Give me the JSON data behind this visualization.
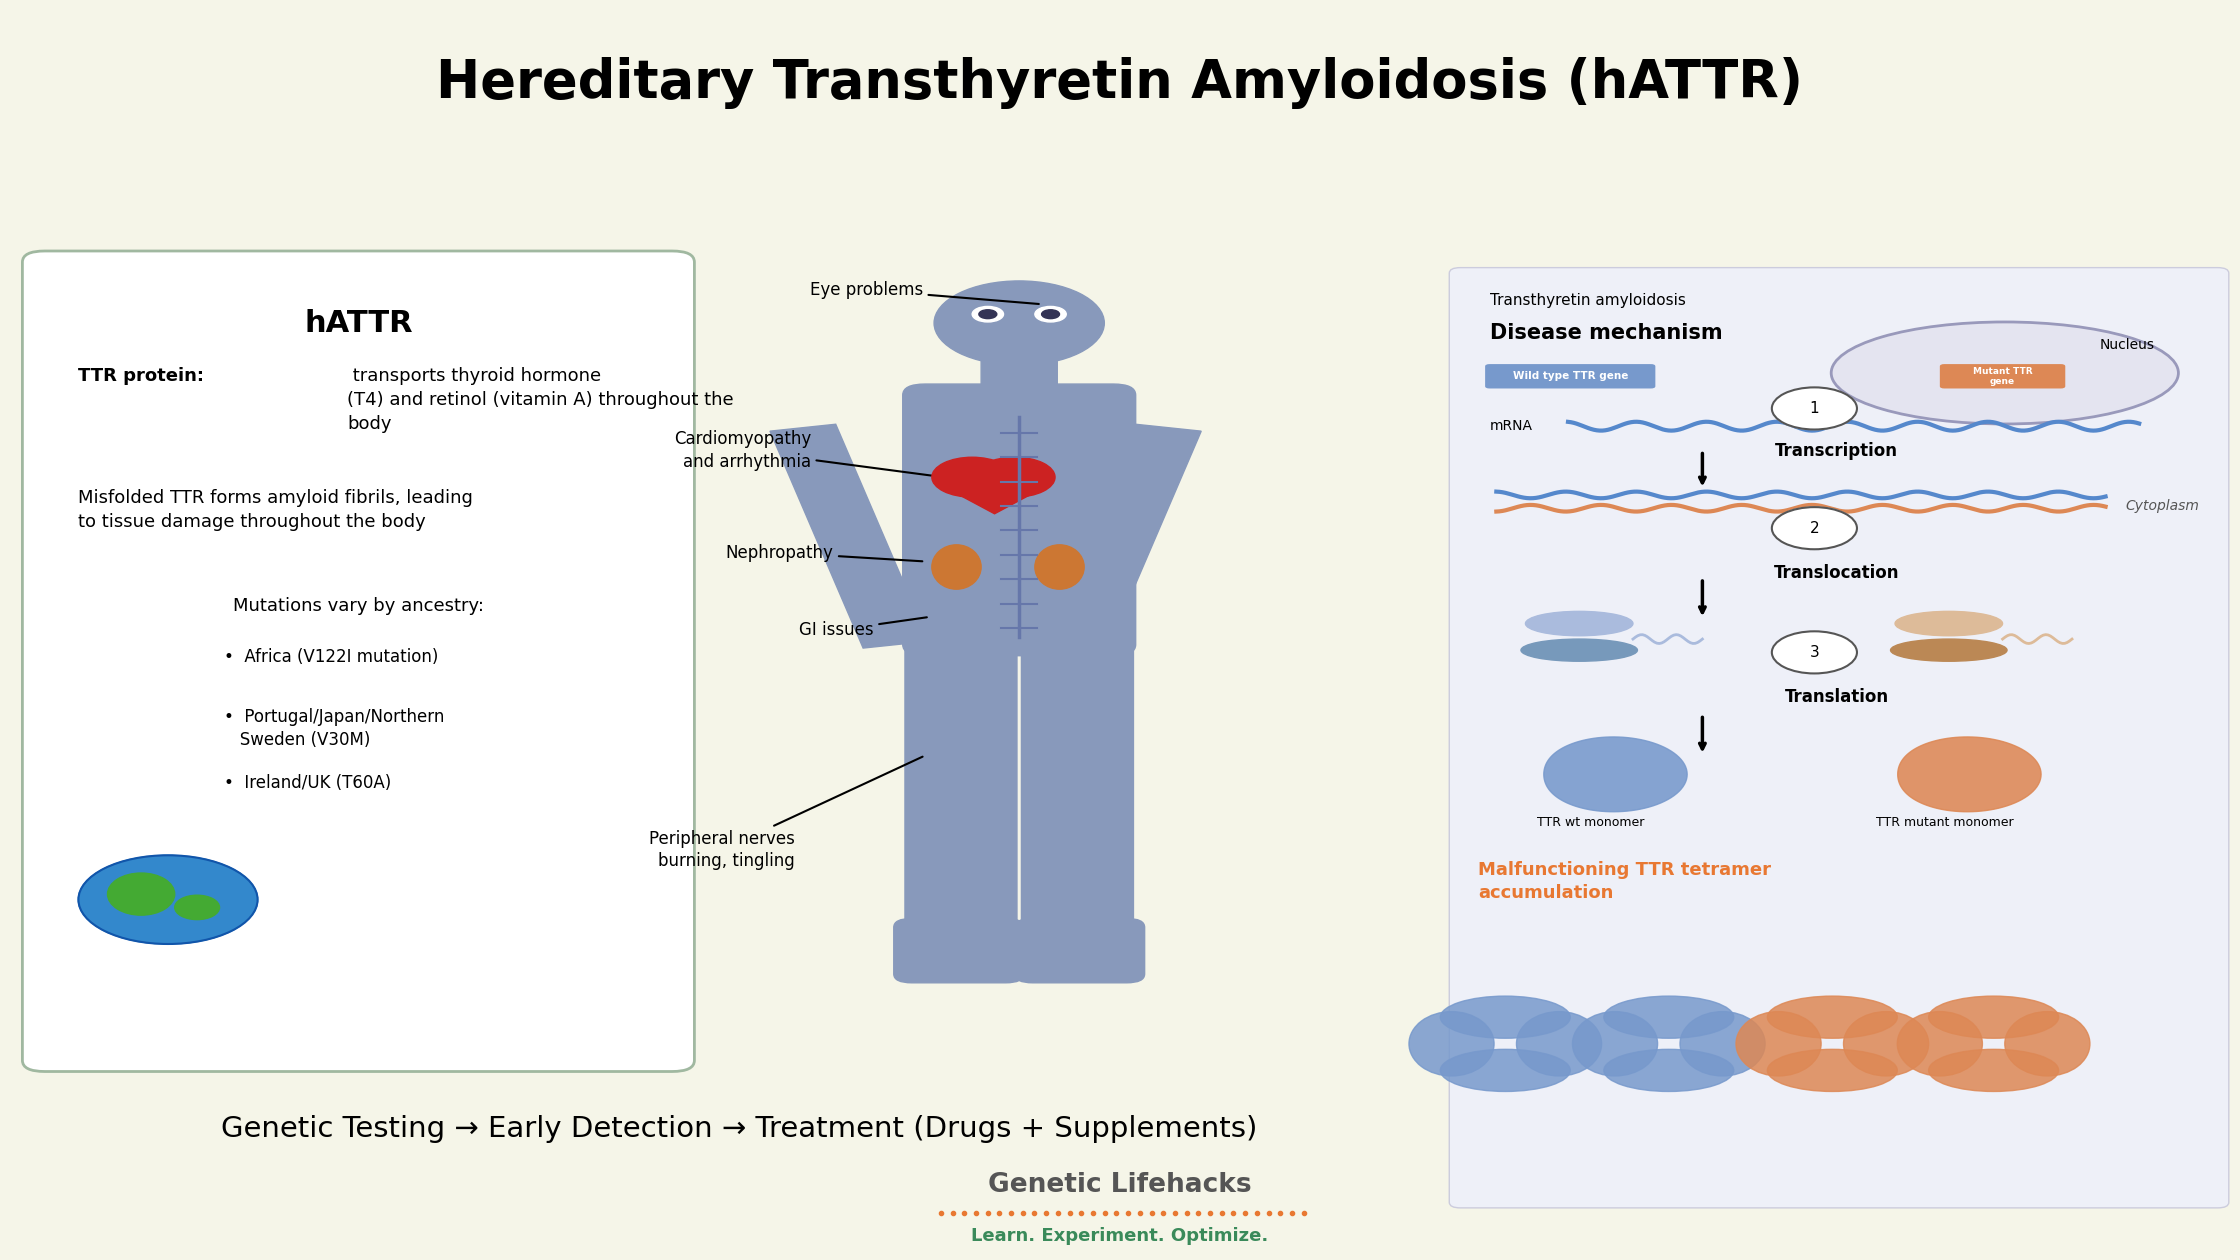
{
  "title": "Hereditary Transthyretin Amyloidosis (hATTR)",
  "title_fontsize": 38,
  "bg_color_top": "#c8d8c8",
  "bg_color_main": "#f5f5e8",
  "left_box_title": "hATTR",
  "left_box_text1_bold": "TTR protein:",
  "left_box_text2": "Misfolded TTR forms amyloid fibrils, leading\nto tissue damage throughout the body",
  "left_box_text3": "Mutations vary by ancestry:",
  "left_box_bullets": [
    "Africa (V122I mutation)",
    "Portugal/Japan/Northern\n   Sweden (V30M)",
    "Ireland/UK (T60A)"
  ],
  "bottom_text": "Genetic Testing → Early Detection → Treatment (Drugs + Supplements)",
  "brand_name": "Genetic Lifehacks",
  "brand_tagline": "Learn. Experiment. Optimize.",
  "brand_dots_color": "#e87832",
  "brand_tagline_color": "#3a8a5a",
  "brand_name_color": "#555555",
  "right_title1": "Transthyretin amyloidosis",
  "right_title2": "Disease mechanism",
  "right_labels": [
    "Transcription",
    "Translocation",
    "Translation"
  ],
  "right_sublabels": [
    "TTR wt monomer",
    "TTR mutant monomer"
  ],
  "right_final": "Malfunctioning TTR tetramer\naccumulation",
  "right_final_color": "#e87832",
  "nucleus_label": "Nucleus",
  "cytoplasm_label": "Cytoplasm",
  "box_border_color": "#a0b8a0",
  "human_color": "#8899bb",
  "right_box_bg": "#eef0f8"
}
